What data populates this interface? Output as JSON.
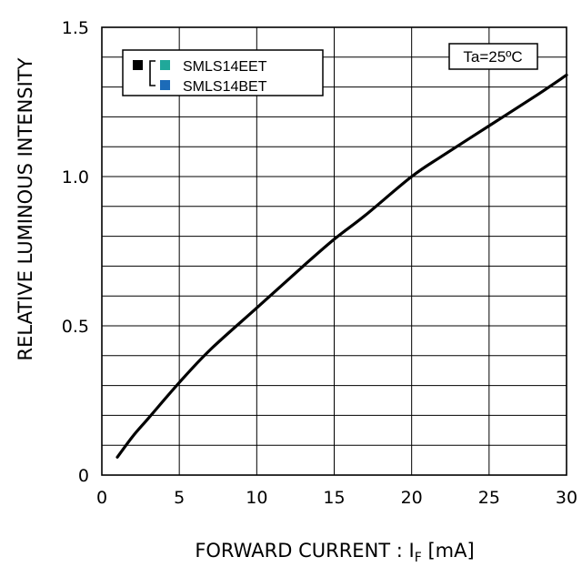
{
  "chart_data": {
    "type": "line",
    "xlabel_main": "FORWARD CURRENT : I",
    "xlabel_sub": "F",
    "xlabel_unit": " [mA]",
    "ylabel": "RELATIVE LUMINOUS INTENSITY",
    "xlim": [
      0,
      30
    ],
    "ylim": [
      0,
      1.5
    ],
    "x_ticks": [
      "0",
      "5",
      "10",
      "15",
      "20",
      "25",
      "30"
    ],
    "y_ticks": [
      "0",
      "0.5",
      "1.0",
      "1.5"
    ],
    "grid": true,
    "legend_placement": "top-left",
    "condition_label": "Ta=25ºC",
    "legend": {
      "group_marker_color": "#000000",
      "entries": [
        {
          "name": "SMLS14EET",
          "color": "#20a89a"
        },
        {
          "name": "SMLS14BET",
          "color": "#1c6bb8"
        }
      ]
    },
    "series": [
      {
        "x": [
          1,
          2,
          3,
          5,
          7,
          10,
          13,
          15,
          17,
          20,
          22,
          25,
          28,
          30
        ],
        "y": [
          0.06,
          0.13,
          0.19,
          0.31,
          0.42,
          0.56,
          0.7,
          0.79,
          0.87,
          1.0,
          1.07,
          1.17,
          1.27,
          1.34
        ],
        "color": "#000000"
      }
    ]
  }
}
